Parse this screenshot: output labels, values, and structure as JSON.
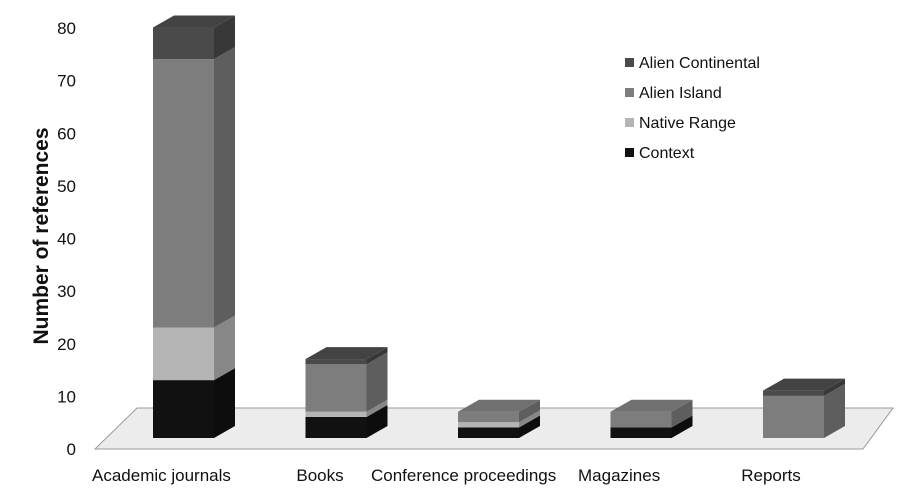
{
  "chart_data": {
    "type": "bar",
    "stacked": true,
    "style": "3d",
    "title": "",
    "xlabel": "",
    "ylabel": "Number of references",
    "ylim": [
      0,
      80
    ],
    "yticks": [
      0,
      10,
      20,
      30,
      40,
      50,
      60,
      70,
      80
    ],
    "grid": false,
    "legend_position": "top-right",
    "categories": [
      "Academic journals",
      "Books",
      "Conference proceedings",
      "Magazines",
      "Reports"
    ],
    "series": [
      {
        "name": "Context",
        "color": "#111111",
        "values": [
          11,
          4,
          2,
          2,
          0
        ]
      },
      {
        "name": "Native Range",
        "color": "#b4b4b4",
        "values": [
          10,
          1,
          1,
          0,
          0
        ]
      },
      {
        "name": "Alien Island",
        "color": "#7d7d7d",
        "values": [
          51,
          9,
          2,
          3,
          8
        ]
      },
      {
        "name": "Alien Continental",
        "color": "#4a4a4a",
        "values": [
          6,
          1,
          0,
          0,
          1
        ]
      }
    ],
    "legend_order": [
      "Alien Continental",
      "Alien Island",
      "Native Range",
      "Context"
    ]
  }
}
